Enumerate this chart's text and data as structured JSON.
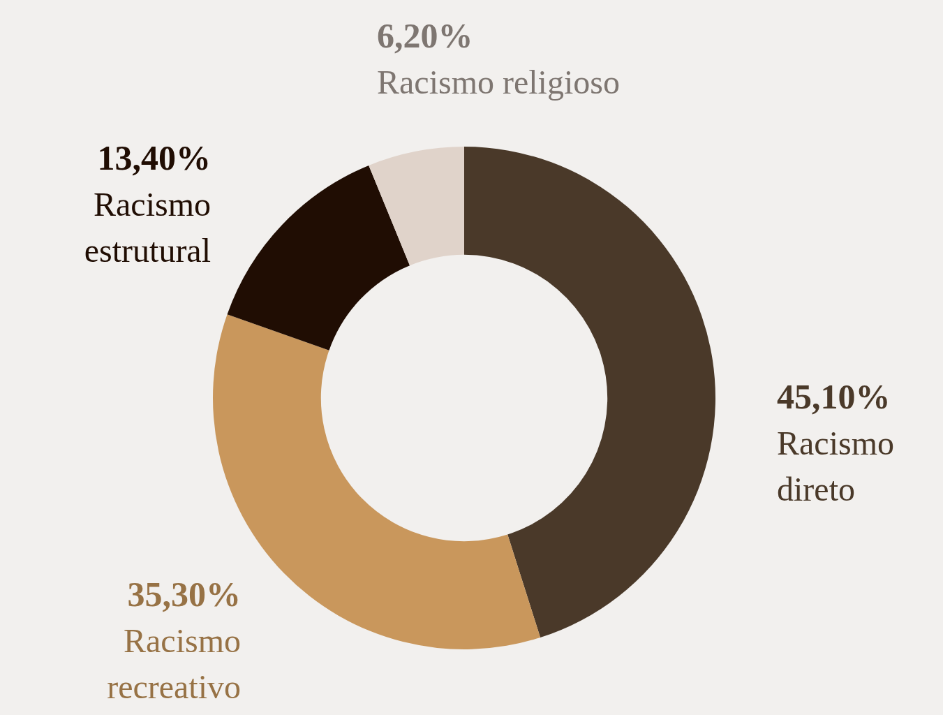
{
  "chart_data": {
    "type": "donut",
    "categories": [
      "Racismo direto",
      "Racismo recreativo",
      "Racismo estrutural",
      "Racismo religioso"
    ],
    "values": [
      45.1,
      35.3,
      13.4,
      6.2
    ],
    "colors": [
      "#4a3929",
      "#c9975c",
      "#200d03",
      "#e0d3ca"
    ],
    "value_labels": [
      "45,10%",
      "35,30%",
      "13,40%",
      "6,20%"
    ],
    "legend": false
  }
}
